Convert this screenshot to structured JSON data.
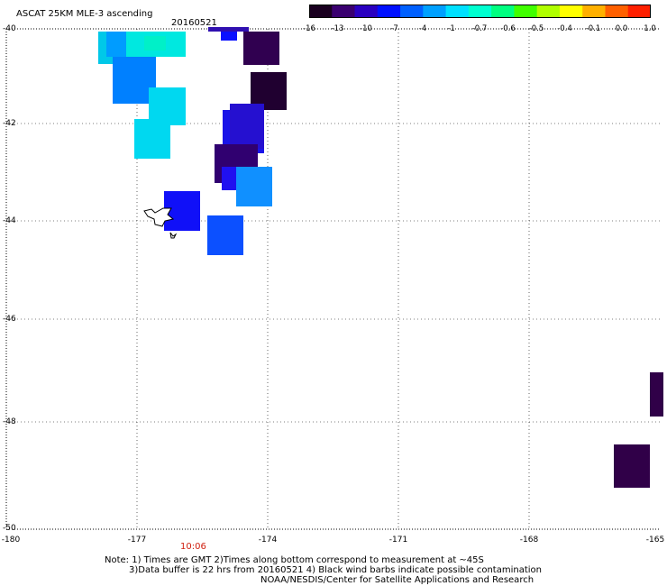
{
  "header": {
    "title": "ASCAT 25KM MLE-3 ascending",
    "date": "20160521"
  },
  "colorbar": {
    "stops": [
      "#1a0020",
      "#3a0070",
      "#2a00c0",
      "#0010ff",
      "#0060ff",
      "#00a0ff",
      "#00e0ff",
      "#00ffd0",
      "#00ff80",
      "#40ff00",
      "#b0ff00",
      "#ffff00",
      "#ffb000",
      "#ff6000",
      "#ff2000"
    ],
    "labels": [
      "-16",
      "-13",
      "-10",
      "-7",
      "-4",
      "-1",
      "-0.7",
      "-0.6",
      "-0.5",
      "-0.4",
      "-0.1",
      "0.0",
      "1.0"
    ]
  },
  "axes": {
    "y_ticks": [
      "-40",
      "-42",
      "-44",
      "-46",
      "-48",
      "-50"
    ],
    "x_ticks": [
      "-180",
      "-177",
      "-174",
      "-171",
      "-168",
      "-165"
    ],
    "lon_range": [
      -180,
      -165
    ],
    "lat_range": [
      -50,
      -40
    ],
    "grid": "dotted"
  },
  "time_label": "10:06",
  "notes": {
    "line1": "Note: 1) Times are GMT 2)Times along bottom correspond to measurement at ~45S",
    "line2": "3)Data buffer is 22 hrs from 20160521 4) Black wind barbs indicate possible contamination",
    "credit": "NOAA/NESDIS/Center for Satellite Applications and Research"
  }
}
